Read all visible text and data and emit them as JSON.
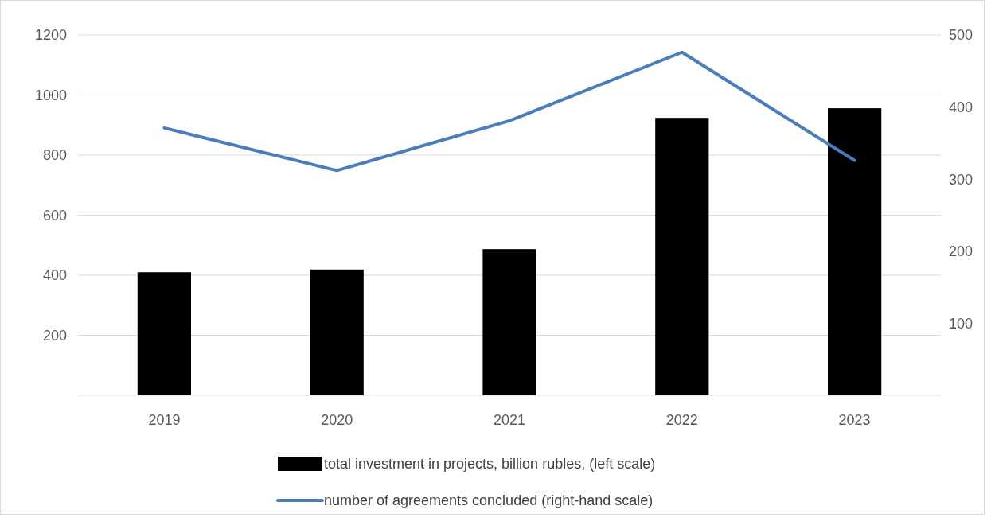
{
  "chart_data": {
    "type": "bar",
    "categories": [
      "2019",
      "2020",
      "2021",
      "2022",
      "2023"
    ],
    "series": [
      {
        "name": "total investment in projects, billion rubles, (left scale)",
        "color": "#000000",
        "values": [
          410,
          419,
          487,
          924,
          956
        ]
      },
      {
        "name": "number of agreements concluded (right-hand scale)",
        "type": "line",
        "axis": "y2",
        "color": "#4a7ebb",
        "values": [
          371,
          312,
          381,
          476,
          326
        ]
      }
    ],
    "ylim": [
      0,
      1200
    ],
    "yticks": [
      200,
      400,
      600,
      800,
      1000,
      1200
    ],
    "y2lim": [
      0,
      500
    ],
    "y2ticks": [
      100,
      200,
      300,
      400,
      500
    ],
    "grid": "y",
    "legend": "bottom",
    "marker": "none",
    "line_style": "solid"
  }
}
